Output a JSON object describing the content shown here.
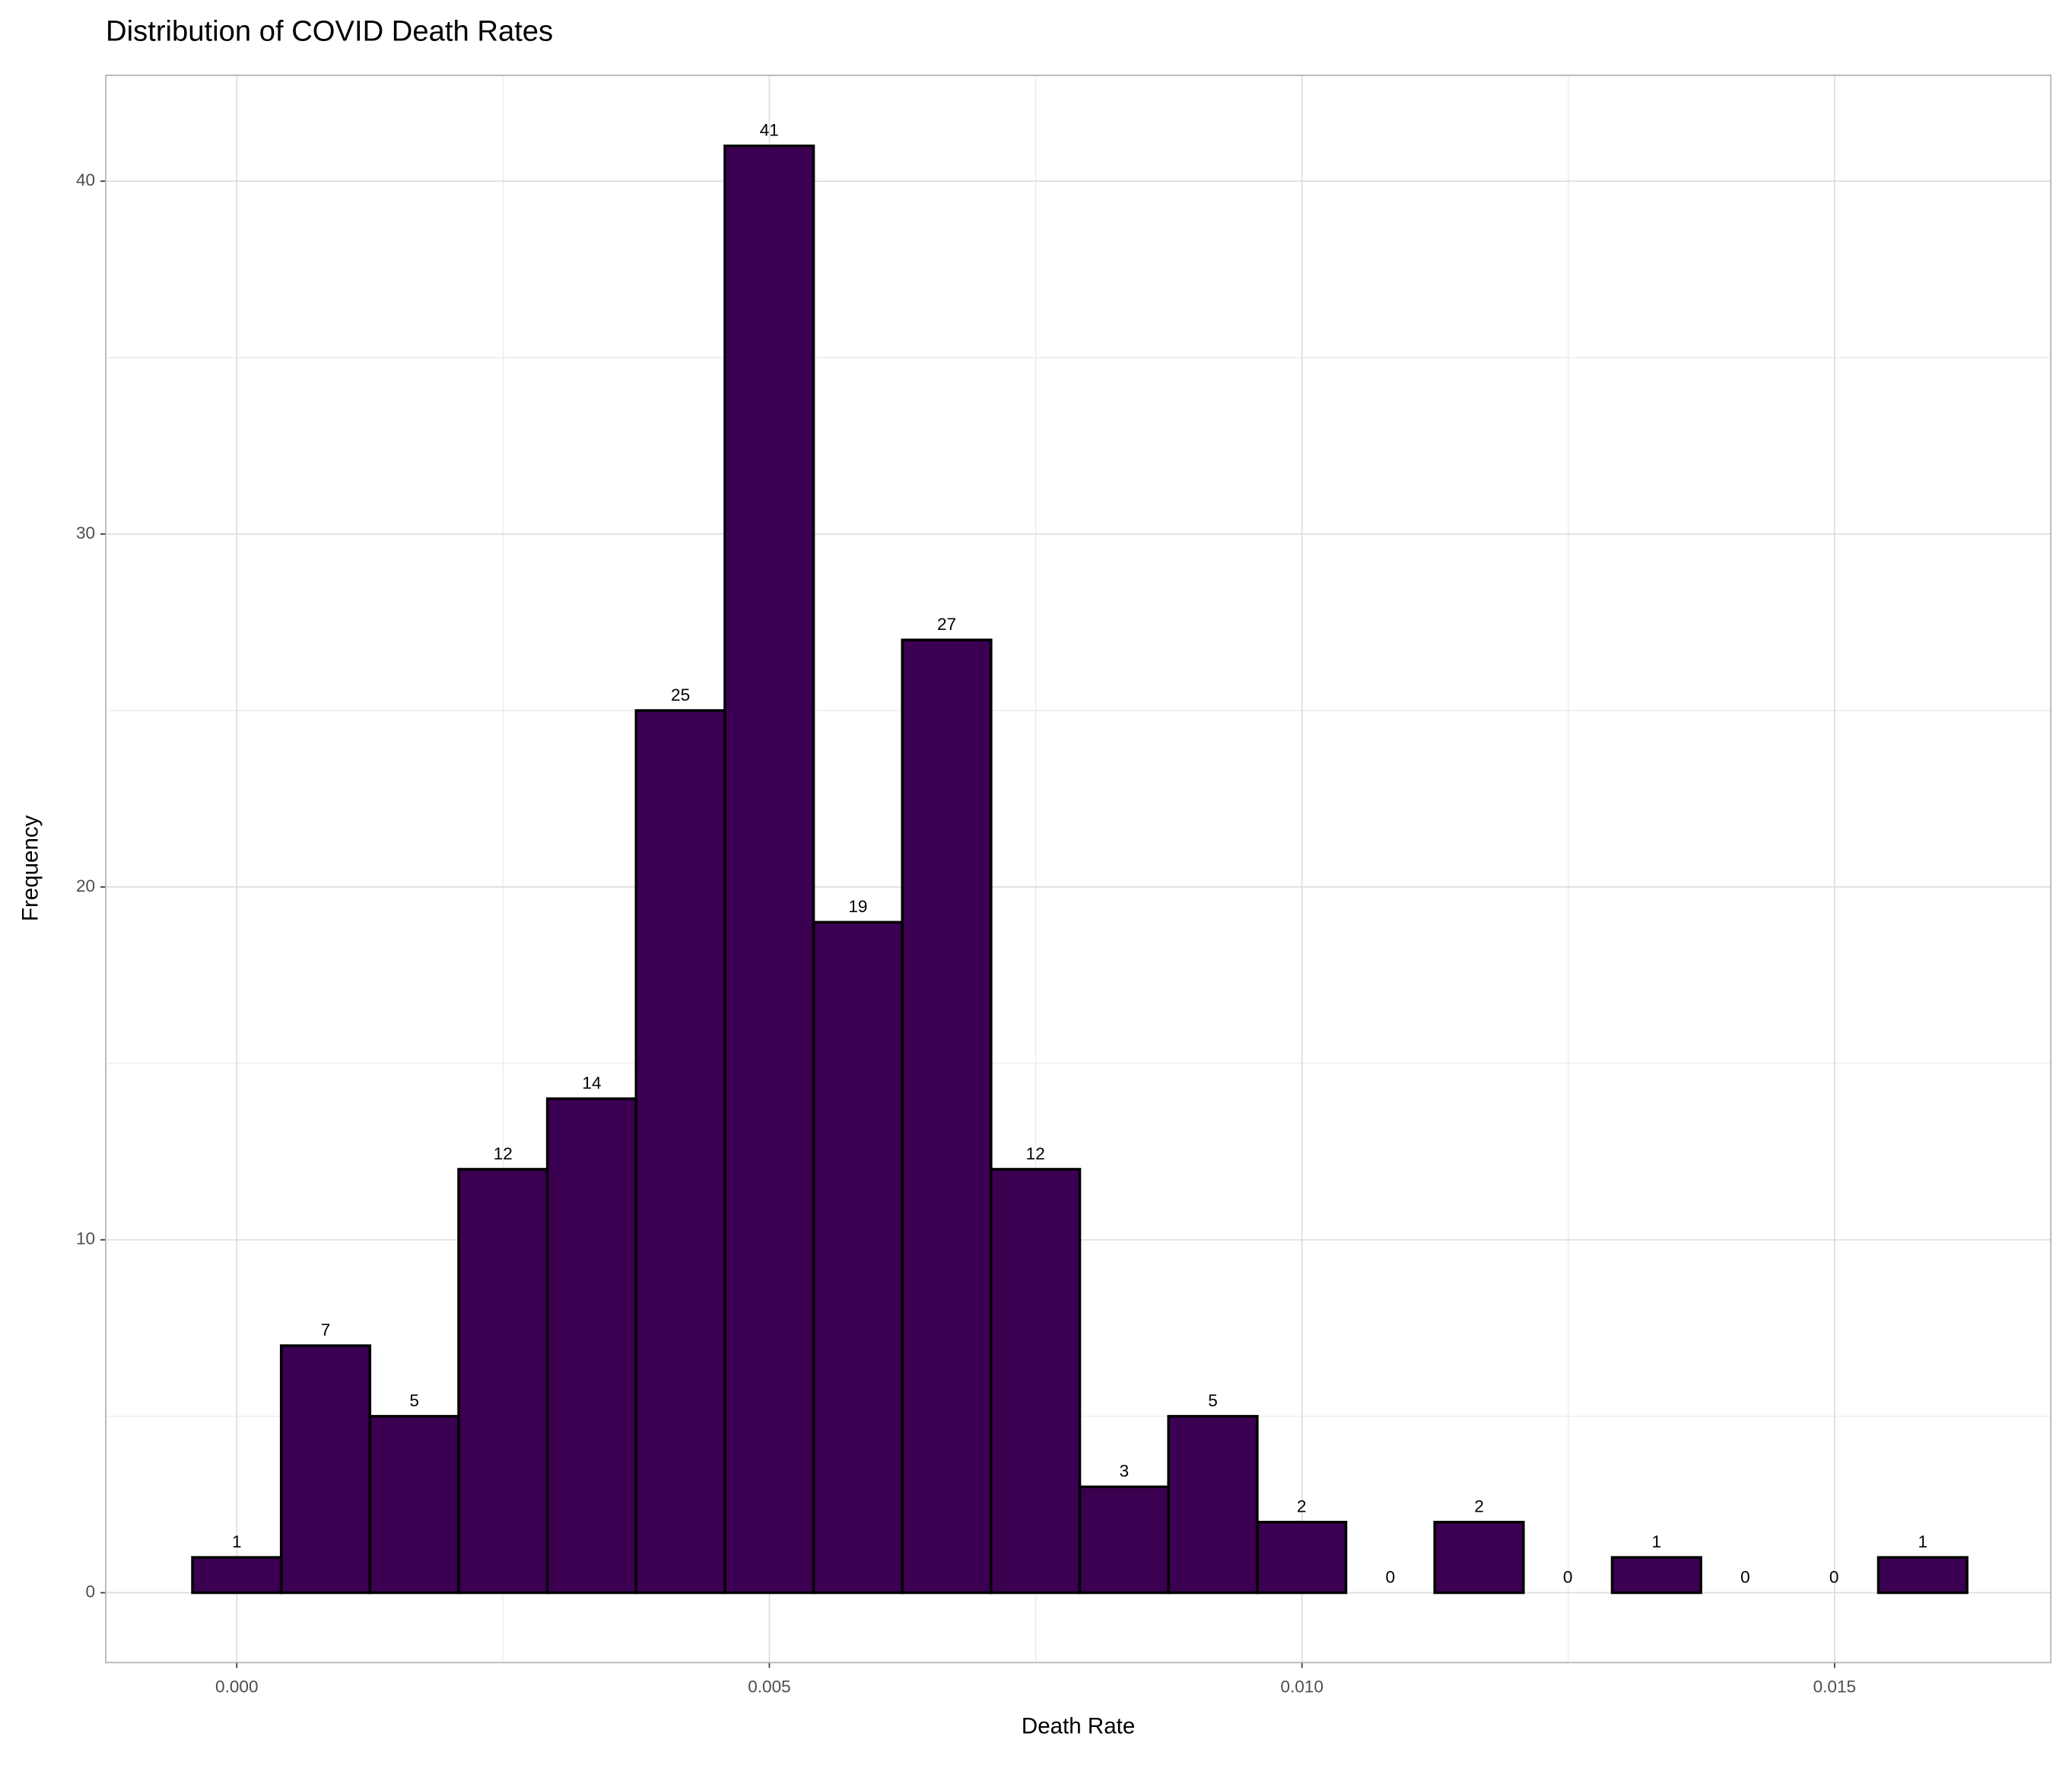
{
  "chart_data": {
    "type": "histogram",
    "title": "Distribution of COVID Death Rates",
    "x_label": "Death Rate",
    "y_label": "Frequency",
    "bins": [
      -0.000416,
      0.000417,
      0.00125,
      0.002083,
      0.002916,
      0.003749,
      0.004582,
      0.005415,
      0.006248,
      0.007081,
      0.007914,
      0.008747,
      0.00958,
      0.010413,
      0.011246,
      0.012079,
      0.012912,
      0.013745,
      0.014578,
      0.015411,
      0.016244
    ],
    "counts": [
      1,
      7,
      5,
      12,
      14,
      25,
      41,
      19,
      27,
      12,
      3,
      5,
      2,
      0,
      2,
      0,
      1,
      0,
      0,
      1
    ],
    "color": "#3b0051",
    "edge_color": "#000000",
    "xlim": [
      -0.00123,
      0.01703
    ],
    "ylim": [
      -1.98,
      43.0
    ],
    "xticks": [
      {
        "value": 0,
        "label": "0.000"
      },
      {
        "value": 0.005,
        "label": "0.005"
      },
      {
        "value": 0.01,
        "label": "0.010"
      },
      {
        "value": 0.015,
        "label": "0.015"
      }
    ],
    "yticks": [
      0,
      10,
      20,
      30,
      40
    ],
    "x_minor_grid": [
      0.0025,
      0.0075,
      0.0125
    ],
    "y_minor_grid": [
      5,
      15,
      25,
      35
    ],
    "grid": true
  }
}
